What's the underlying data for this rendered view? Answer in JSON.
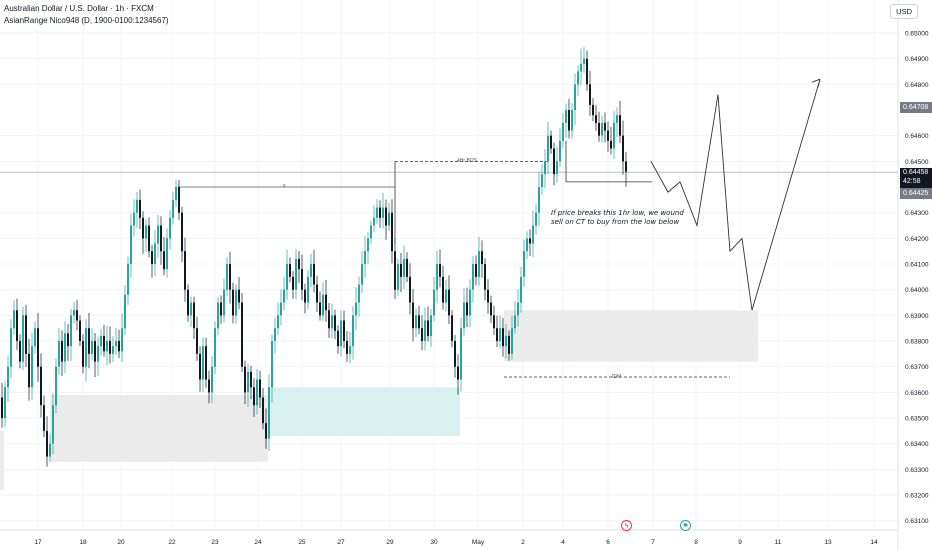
{
  "header": {
    "title": "Australian Dollar / U.S. Dollar · 1h · FXCM",
    "indicator": "AsianRange Nico948 (D, 1900-0100:1234567)",
    "currency": "USD"
  },
  "annotations": {
    "bos_label": "4Hr BOS",
    "x_label": "x",
    "idm_label": "IDM",
    "note": "If price breaks this 1hr low, we wound sell on CT to buy from the low below"
  },
  "price_tags": {
    "target": "0.64708",
    "current": "0.64458",
    "countdown": "42:58",
    "low": "0.64425"
  },
  "colors": {
    "up": "#26a69a",
    "down": "#131722",
    "grid": "#f0f3fa",
    "target_tag": "#787b86",
    "current_tag": "#131722",
    "low_tag": "#787b86",
    "gray_zone": "#ebebeb",
    "teal_zone": "#d7f2ee",
    "event_red": "#f23645",
    "event_teal": "#26a69a"
  },
  "events": [
    {
      "icon": "lightning-icon",
      "glyph": "ϟ"
    },
    {
      "icon": "flag-icon",
      "glyph": "⚑"
    }
  ],
  "chart_data": {
    "type": "candlestick",
    "symbol": "AUDUSD",
    "timeframe": "1h",
    "yaxis_ticks": [
      "0.65000",
      "0.64900",
      "0.64800",
      "0.64600",
      "0.64500",
      "0.64300",
      "0.64200",
      "0.64100",
      "0.64000",
      "0.63900",
      "0.63800",
      "0.63700",
      "0.63600",
      "0.63500",
      "0.63400",
      "0.63300",
      "0.63200",
      "0.63100"
    ],
    "xaxis_ticks": [
      "17",
      "18",
      "20",
      "22",
      "23",
      "24",
      "25",
      "27",
      "29",
      "30",
      "May",
      "2",
      "4",
      "6",
      "7",
      "8",
      "9",
      "11",
      "13",
      "14"
    ],
    "ylim": [
      0.631,
      0.6505
    ],
    "price_path": [
      [
        0,
        0.6358
      ],
      [
        3,
        0.635
      ],
      [
        6,
        0.6362
      ],
      [
        9,
        0.637
      ],
      [
        12,
        0.6385
      ],
      [
        15,
        0.6392
      ],
      [
        18,
        0.638
      ],
      [
        21,
        0.6372
      ],
      [
        24,
        0.639
      ],
      [
        27,
        0.6375
      ],
      [
        30,
        0.6362
      ],
      [
        33,
        0.6378
      ],
      [
        36,
        0.6385
      ],
      [
        39,
        0.637
      ],
      [
        42,
        0.6355
      ],
      [
        45,
        0.6345
      ],
      [
        48,
        0.6335
      ],
      [
        51,
        0.634
      ],
      [
        54,
        0.6355
      ],
      [
        57,
        0.637
      ],
      [
        60,
        0.638
      ],
      [
        63,
        0.6372
      ],
      [
        66,
        0.6383
      ],
      [
        69,
        0.6378
      ],
      [
        72,
        0.639
      ],
      [
        75,
        0.6392
      ],
      [
        78,
        0.6388
      ],
      [
        81,
        0.638
      ],
      [
        84,
        0.637
      ],
      [
        87,
        0.6385
      ],
      [
        90,
        0.6375
      ],
      [
        93,
        0.638
      ],
      [
        96,
        0.6372
      ],
      [
        99,
        0.6378
      ],
      [
        102,
        0.6382
      ],
      [
        105,
        0.6376
      ],
      [
        108,
        0.638
      ],
      [
        111,
        0.6375
      ],
      [
        114,
        0.6378
      ],
      [
        117,
        0.638
      ],
      [
        120,
        0.6376
      ],
      [
        123,
        0.6385
      ],
      [
        126,
        0.6398
      ],
      [
        129,
        0.641
      ],
      [
        132,
        0.6425
      ],
      [
        135,
        0.643
      ],
      [
        138,
        0.6435
      ],
      [
        141,
        0.6428
      ],
      [
        144,
        0.642
      ],
      [
        147,
        0.6425
      ],
      [
        150,
        0.6415
      ],
      [
        153,
        0.641
      ],
      [
        156,
        0.6418
      ],
      [
        159,
        0.6425
      ],
      [
        162,
        0.6415
      ],
      [
        165,
        0.6408
      ],
      [
        168,
        0.642
      ],
      [
        171,
        0.6428
      ],
      [
        174,
        0.6435
      ],
      [
        177,
        0.644
      ],
      [
        180,
        0.643
      ],
      [
        183,
        0.6415
      ],
      [
        186,
        0.64
      ],
      [
        189,
        0.639
      ],
      [
        192,
        0.6395
      ],
      [
        195,
        0.6385
      ],
      [
        198,
        0.6375
      ],
      [
        201,
        0.6365
      ],
      [
        204,
        0.6378
      ],
      [
        207,
        0.6365
      ],
      [
        210,
        0.636
      ],
      [
        213,
        0.637
      ],
      [
        216,
        0.6385
      ],
      [
        219,
        0.6395
      ],
      [
        222,
        0.639
      ],
      [
        225,
        0.64
      ],
      [
        228,
        0.641
      ],
      [
        231,
        0.64
      ],
      [
        234,
        0.639
      ],
      [
        237,
        0.64
      ],
      [
        240,
        0.6395
      ],
      [
        243,
        0.637
      ],
      [
        246,
        0.636
      ],
      [
        249,
        0.6368
      ],
      [
        252,
        0.6362
      ],
      [
        255,
        0.6355
      ],
      [
        258,
        0.6365
      ],
      [
        261,
        0.6358
      ],
      [
        264,
        0.6348
      ],
      [
        267,
        0.6342
      ],
      [
        270,
        0.6362
      ],
      [
        273,
        0.638
      ],
      [
        276,
        0.6385
      ],
      [
        279,
        0.639
      ],
      [
        282,
        0.6395
      ],
      [
        285,
        0.64
      ],
      [
        288,
        0.641
      ],
      [
        291,
        0.6405
      ],
      [
        294,
        0.64
      ],
      [
        297,
        0.6412
      ],
      [
        300,
        0.6408
      ],
      [
        303,
        0.64
      ],
      [
        306,
        0.6395
      ],
      [
        309,
        0.6405
      ],
      [
        312,
        0.641
      ],
      [
        315,
        0.6402
      ],
      [
        318,
        0.6395
      ],
      [
        321,
        0.639
      ],
      [
        324,
        0.6398
      ],
      [
        327,
        0.6392
      ],
      [
        330,
        0.6385
      ],
      [
        333,
        0.639
      ],
      [
        336,
        0.6384
      ],
      [
        339,
        0.6378
      ],
      [
        342,
        0.6388
      ],
      [
        345,
        0.638
      ],
      [
        348,
        0.6375
      ],
      [
        351,
        0.6378
      ],
      [
        354,
        0.639
      ],
      [
        357,
        0.6395
      ],
      [
        360,
        0.6402
      ],
      [
        363,
        0.641
      ],
      [
        366,
        0.6415
      ],
      [
        369,
        0.642
      ],
      [
        372,
        0.6425
      ],
      [
        375,
        0.6428
      ],
      [
        378,
        0.6432
      ],
      [
        381,
        0.6428
      ],
      [
        384,
        0.6432
      ],
      [
        387,
        0.6425
      ],
      [
        390,
        0.643
      ],
      [
        393,
        0.6415
      ],
      [
        396,
        0.64
      ],
      [
        399,
        0.641
      ],
      [
        402,
        0.6405
      ],
      [
        405,
        0.6412
      ],
      [
        408,
        0.6405
      ],
      [
        411,
        0.6395
      ],
      [
        414,
        0.6385
      ],
      [
        417,
        0.639
      ],
      [
        420,
        0.6385
      ],
      [
        423,
        0.638
      ],
      [
        426,
        0.6388
      ],
      [
        429,
        0.6382
      ],
      [
        432,
        0.639
      ],
      [
        435,
        0.64
      ],
      [
        438,
        0.641
      ],
      [
        441,
        0.6405
      ],
      [
        444,
        0.6395
      ],
      [
        447,
        0.64
      ],
      [
        450,
        0.639
      ],
      [
        453,
        0.638
      ],
      [
        456,
        0.637
      ],
      [
        459,
        0.6365
      ],
      [
        462,
        0.6385
      ],
      [
        465,
        0.6395
      ],
      [
        468,
        0.639
      ],
      [
        471,
        0.64
      ],
      [
        474,
        0.641
      ],
      [
        477,
        0.6405
      ],
      [
        480,
        0.6415
      ],
      [
        483,
        0.641
      ],
      [
        486,
        0.64
      ],
      [
        489,
        0.6395
      ],
      [
        492,
        0.639
      ],
      [
        495,
        0.6385
      ],
      [
        498,
        0.638
      ],
      [
        501,
        0.6385
      ],
      [
        504,
        0.6378
      ],
      [
        507,
        0.6382
      ],
      [
        510,
        0.6375
      ],
      [
        513,
        0.6385
      ],
      [
        516,
        0.639
      ],
      [
        519,
        0.6395
      ],
      [
        522,
        0.6405
      ],
      [
        525,
        0.6415
      ],
      [
        528,
        0.642
      ],
      [
        531,
        0.6418
      ],
      [
        534,
        0.6425
      ],
      [
        537,
        0.643
      ],
      [
        540,
        0.644
      ],
      [
        543,
        0.6445
      ],
      [
        546,
        0.645
      ],
      [
        549,
        0.646
      ],
      [
        552,
        0.6455
      ],
      [
        555,
        0.6445
      ],
      [
        558,
        0.645
      ],
      [
        561,
        0.6458
      ],
      [
        564,
        0.6465
      ],
      [
        567,
        0.647
      ],
      [
        570,
        0.6462
      ],
      [
        573,
        0.647
      ],
      [
        576,
        0.648
      ],
      [
        579,
        0.6485
      ],
      [
        582,
        0.6488
      ],
      [
        585,
        0.649
      ],
      [
        588,
        0.648
      ],
      [
        591,
        0.6472
      ],
      [
        594,
        0.6468
      ],
      [
        597,
        0.6465
      ],
      [
        600,
        0.646
      ],
      [
        603,
        0.6465
      ],
      [
        606,
        0.6462
      ],
      [
        609,
        0.6458
      ],
      [
        612,
        0.6455
      ],
      [
        615,
        0.6465
      ],
      [
        618,
        0.6468
      ],
      [
        621,
        0.646
      ],
      [
        624,
        0.645
      ],
      [
        627,
        0.6446
      ]
    ],
    "projection_path": [
      [
        651,
        0.645
      ],
      [
        668,
        0.6438
      ],
      [
        680,
        0.6442
      ],
      [
        697,
        0.6425
      ],
      [
        718,
        0.6476
      ],
      [
        730,
        0.6415
      ],
      [
        742,
        0.642
      ],
      [
        752,
        0.6392
      ],
      [
        820,
        0.6482
      ]
    ],
    "levels": [
      {
        "name": "bos",
        "x1": 395,
        "x2": 548,
        "y": 0.645
      },
      {
        "name": "x-line",
        "x1": 178,
        "x2": 395,
        "y": 0.644
      },
      {
        "name": "idm",
        "x1": 504,
        "x2": 730,
        "y": 0.6366
      },
      {
        "name": "1hr-low",
        "x1": 566,
        "x2": 652,
        "y": 0.6442
      }
    ],
    "zones": [
      {
        "name": "gray-lower",
        "x1": 50,
        "x2": 268,
        "y1": 0.6333,
        "y2": 0.6359,
        "color": "gray_zone"
      },
      {
        "name": "teal-demand",
        "x1": 268,
        "x2": 460,
        "y1": 0.6343,
        "y2": 0.6362,
        "color": "teal_zone"
      },
      {
        "name": "gray-upper",
        "x1": 504,
        "x2": 758,
        "y1": 0.6372,
        "y2": 0.6392,
        "color": "gray_zone"
      },
      {
        "name": "gray-left",
        "x1": 0,
        "x2": 4,
        "y1": 0.6322,
        "y2": 0.6345,
        "color": "gray_zone"
      }
    ],
    "current_price": 0.64458
  }
}
